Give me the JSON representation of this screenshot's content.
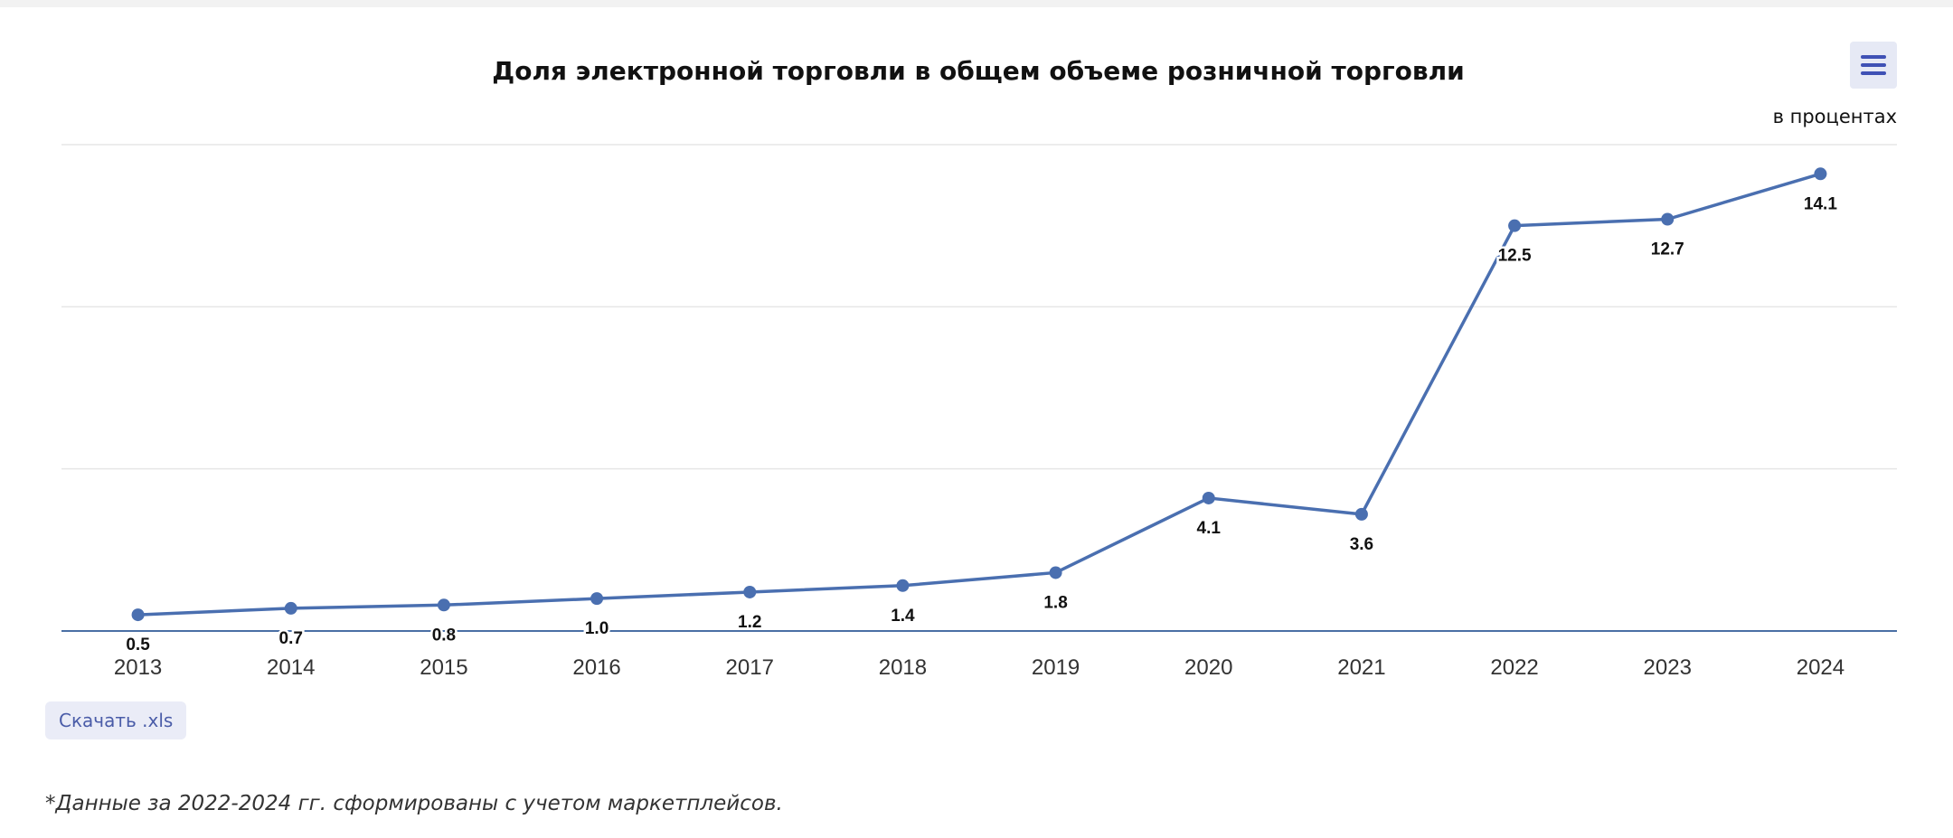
{
  "chart_data": {
    "type": "line",
    "title": "Доля электронной торговли в общем объеме розничной торговли",
    "unit_label": "в процентах",
    "x": [
      "2013",
      "2014",
      "2015",
      "2016",
      "2017",
      "2018",
      "2019",
      "2020",
      "2021",
      "2022",
      "2023",
      "2024"
    ],
    "values": [
      0.5,
      0.7,
      0.8,
      1.0,
      1.2,
      1.4,
      1.8,
      4.1,
      3.6,
      12.5,
      12.7,
      14.1
    ],
    "value_labels": [
      "0.5",
      "0.7",
      "0.8",
      "1.0",
      "1.2",
      "1.4",
      "1.8",
      "4.1",
      "3.6",
      "12.5",
      "12.7",
      "14.1"
    ],
    "ylim": [
      0,
      15
    ],
    "grid": true,
    "legend": false,
    "colors": {
      "line": "#4a6fb0",
      "grid": "#e6e6e6",
      "axis": "#4a6fa5",
      "title": "#111111",
      "label": "#111111",
      "tick": "#333333"
    }
  },
  "menu": {
    "icon": "hamburger-menu-icon",
    "color": "#3f51b5"
  },
  "download": {
    "label": "Скачать .xls"
  },
  "footnote": "*Данные за 2022-2024 гг. сформированы с учетом маркетплейсов."
}
